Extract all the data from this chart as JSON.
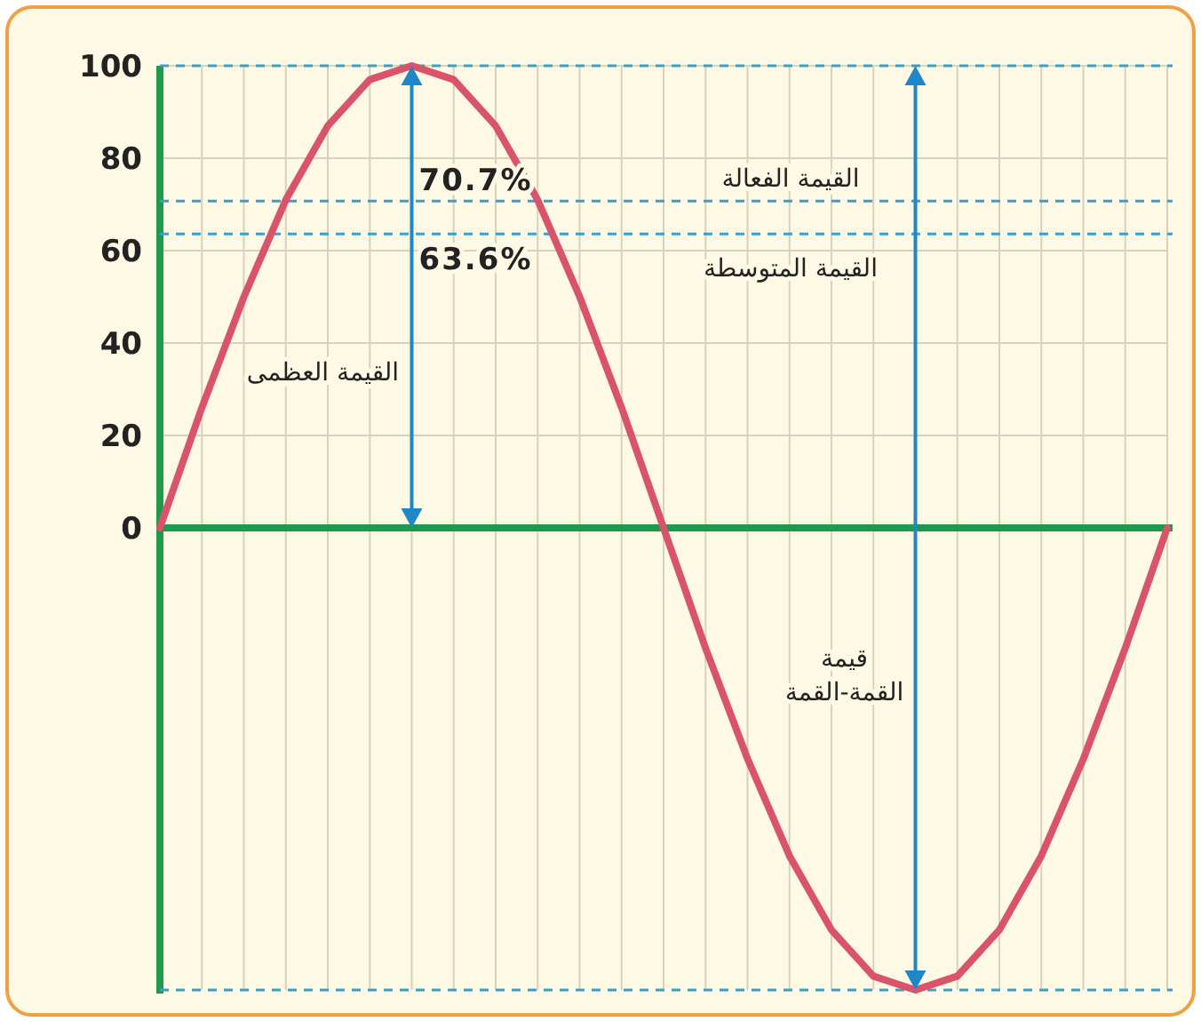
{
  "chart_data": {
    "type": "line",
    "categories": [
      null,
      null,
      null,
      null,
      null,
      null,
      null,
      null,
      null,
      null,
      null,
      null,
      null,
      null,
      null,
      null,
      null,
      null,
      null,
      null,
      null,
      null,
      null,
      null,
      null
    ],
    "series": [
      {
        "color": "#d9546a",
        "values": [
          0,
          26,
          50,
          71,
          87,
          97,
          100,
          97,
          87,
          71,
          50,
          26,
          0,
          -26,
          -50,
          -71,
          -87,
          -97,
          -100,
          -97,
          -87,
          -71,
          -50,
          -26,
          0
        ]
      }
    ],
    "ylim": [
      -100,
      100
    ],
    "yticks": [
      0,
      20,
      40,
      60,
      80,
      100
    ],
    "tick_labels": "y",
    "grid": true,
    "marker": "none",
    "line_style": "solid",
    "ref_lines": [
      {
        "axis": "y",
        "value": 100,
        "color": "#3a9fd0",
        "line_style": "dashed"
      },
      {
        "axis": "y",
        "value": 0,
        "color": "#1f9a4c",
        "line_style": "solid"
      },
      {
        "axis": "y",
        "value": 70.7,
        "label": "70.7%",
        "color": "#3a9fd0",
        "line_style": "dashed"
      },
      {
        "axis": "y",
        "value": 63.6,
        "label": "63.6%",
        "color": "#3a9fd0",
        "line_style": "dashed"
      },
      {
        "axis": "y",
        "value": -100,
        "color": "#3a9fd0",
        "line_style": "dashed"
      }
    ],
    "annotations": [
      "القيمة الفعالة",
      "القيمة المتوسطة",
      "القيمة العظمى",
      "قيمة\nالقمة-القمة"
    ]
  }
}
